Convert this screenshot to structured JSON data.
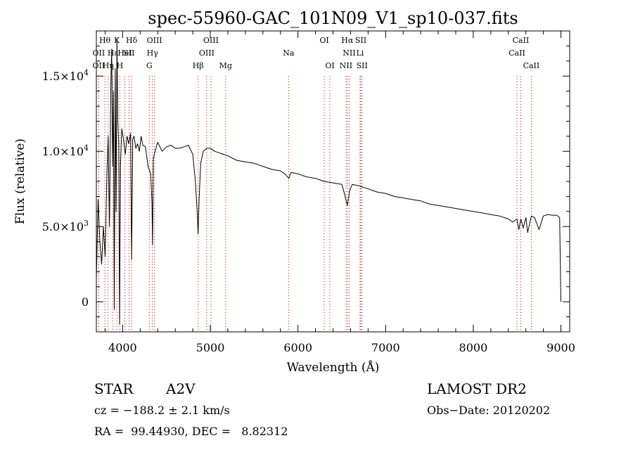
{
  "chart_data": {
    "type": "line",
    "title": "spec-55960-GAC_101N09_V1_sp10-037.fits",
    "xlabel": "Wavelength (Å)",
    "ylabel": "Flux (relative)",
    "xlim": [
      3700,
      9100
    ],
    "ylim": [
      -2000,
      18000
    ],
    "x_ticks": [
      4000,
      5000,
      6000,
      7000,
      8000,
      9000
    ],
    "x_tick_labels": [
      "4000",
      "5000",
      "6000",
      "7000",
      "8000",
      "9000"
    ],
    "y_ticks": [
      0,
      5000,
      10000,
      15000
    ],
    "y_tick_labels": [
      {
        "mant": "0",
        "exp": ""
      },
      {
        "mant": "5.0×10",
        "exp": "3"
      },
      {
        "mant": "1.0×10",
        "exp": "4"
      },
      {
        "mant": "1.5×10",
        "exp": "4"
      }
    ],
    "grid": false,
    "series": [
      {
        "x": [
          3700,
          3720,
          3740,
          3760,
          3780,
          3800,
          3820,
          3835,
          3850,
          3865,
          3875,
          3885,
          3895,
          3905,
          3915,
          3925,
          3935,
          3945,
          3955,
          3965,
          3975,
          3990,
          4010,
          4030,
          4050,
          4070,
          4090,
          4102,
          4115,
          4130,
          4150,
          4170,
          4190,
          4210,
          4230,
          4260,
          4290,
          4320,
          4335,
          4341,
          4350,
          4370,
          4400,
          4450,
          4500,
          4550,
          4600,
          4650,
          4700,
          4750,
          4800,
          4830,
          4850,
          4861,
          4872,
          4890,
          4920,
          4960,
          5000,
          5050,
          5100,
          5150,
          5200,
          5300,
          5400,
          5500,
          5600,
          5700,
          5800,
          5850,
          5895,
          5920,
          6000,
          6100,
          6200,
          6300,
          6400,
          6500,
          6530,
          6563,
          6590,
          6620,
          6700,
          6800,
          6900,
          7000,
          7100,
          7200,
          7300,
          7400,
          7500,
          7600,
          7700,
          7800,
          7900,
          8000,
          8100,
          8200,
          8300,
          8400,
          8450,
          8498,
          8520,
          8542,
          8570,
          8600,
          8620,
          8662,
          8700,
          8750,
          8800,
          8850,
          8900,
          8950,
          8985,
          9000
        ],
        "y": [
          1500,
          6800,
          4000,
          2500,
          5000,
          3000,
          8500,
          11000,
          5000,
          14500,
          16800,
          9000,
          14000,
          -500,
          15500,
          6000,
          17500,
          12000,
          10500,
          -1500,
          9000,
          11500,
          10800,
          9800,
          11000,
          10500,
          11200,
          2800,
          10800,
          11000,
          10200,
          10500,
          10000,
          11000,
          10400,
          10300,
          9000,
          8500,
          6500,
          3800,
          9500,
          10000,
          10600,
          10000,
          10300,
          10400,
          10200,
          10200,
          10300,
          10400,
          9800,
          8000,
          6000,
          4500,
          6800,
          9200,
          10000,
          10200,
          10200,
          10000,
          9900,
          9800,
          9700,
          9400,
          9300,
          9200,
          9000,
          8800,
          8700,
          8500,
          8200,
          8600,
          8500,
          8300,
          8200,
          8000,
          7900,
          7800,
          7200,
          6400,
          7400,
          7800,
          7700,
          7500,
          7300,
          7200,
          7000,
          6900,
          6800,
          6700,
          6500,
          6400,
          6300,
          6200,
          6100,
          6000,
          5900,
          5800,
          5700,
          5500,
          5300,
          5500,
          4800,
          5500,
          4900,
          5600,
          4600,
          5700,
          5600,
          4800,
          5700,
          5800,
          5750,
          5750,
          5600,
          0
        ]
      }
    ],
    "line_markers": [
      {
        "label": "Hθ",
        "x": 3797,
        "row": 1
      },
      {
        "label": "K",
        "x": 3934,
        "row": 1
      },
      {
        "label": "Hδ",
        "x": 4102,
        "row": 1
      },
      {
        "label": "OIII",
        "x": 4363,
        "row": 1
      },
      {
        "label": "OIII",
        "x": 5007,
        "row": 1
      },
      {
        "label": "OI",
        "x": 6300,
        "row": 1
      },
      {
        "label": "Hα",
        "x": 6563,
        "row": 1
      },
      {
        "label": "SII",
        "x": 6717,
        "row": 1
      },
      {
        "label": "CaII",
        "x": 8542,
        "row": 1
      },
      {
        "label": "OII",
        "x": 3727,
        "row": 2
      },
      {
        "label": "Hε",
        "x": 3889,
        "row": 2
      },
      {
        "label": "HeI",
        "x": 4026,
        "row": 2
      },
      {
        "label": "SII",
        "x": 4072,
        "row": 2
      },
      {
        "label": "Hγ",
        "x": 4340,
        "row": 2
      },
      {
        "label": "OIII",
        "x": 4959,
        "row": 2
      },
      {
        "label": "Na",
        "x": 5893,
        "row": 2
      },
      {
        "label": "NII",
        "x": 6584,
        "row": 2
      },
      {
        "label": "Li",
        "x": 6708,
        "row": 2
      },
      {
        "label": "CaII",
        "x": 8498,
        "row": 2
      },
      {
        "label": "OII",
        "x": 3727,
        "row": 3
      },
      {
        "label": "Hη",
        "x": 3835,
        "row": 3
      },
      {
        "label": "H",
        "x": 3968,
        "row": 3
      },
      {
        "label": "G",
        "x": 4304,
        "row": 3
      },
      {
        "label": "Hβ",
        "x": 4861,
        "row": 3
      },
      {
        "label": "Mg",
        "x": 5175,
        "row": 3
      },
      {
        "label": "OI",
        "x": 6364,
        "row": 3
      },
      {
        "label": "NII",
        "x": 6548,
        "row": 3
      },
      {
        "label": "SII",
        "x": 6731,
        "row": 3
      },
      {
        "label": "CaII",
        "x": 8662,
        "row": 3
      }
    ]
  },
  "info": {
    "class": "STAR",
    "subclass": "A2V",
    "survey": "LAMOST DR2",
    "cz": "cz = −188.2 ± 2.1 km/s",
    "obs_date": "Obs−Date: 20120202",
    "radec": "RA =  99.44930, DEC =   8.82312"
  }
}
